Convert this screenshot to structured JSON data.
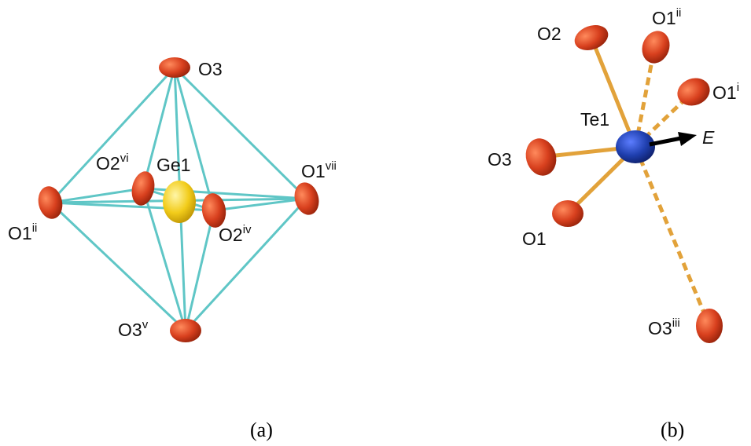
{
  "colors": {
    "bond_octahedron": "#5fc6c6",
    "bond_te": "#e2a23a",
    "oxygen": "#d8401e",
    "germanium": "#f2cc1a",
    "tellurium": "#1f3fae",
    "field_arrow": "#000000"
  },
  "panel_a": {
    "caption": "(a)",
    "center_label": "Ge1",
    "labels": {
      "o3_top": {
        "base": "O3",
        "sup": ""
      },
      "o2_vi": {
        "base": "O2",
        "sup": "vi"
      },
      "o1_vii": {
        "base": "O1",
        "sup": "vii"
      },
      "o1_ii": {
        "base": "O1",
        "sup": "ii"
      },
      "o2_iv": {
        "base": "O2",
        "sup": "iv"
      },
      "o3_v": {
        "base": "O3",
        "sup": "v"
      }
    }
  },
  "panel_b": {
    "caption": "(b)",
    "center_label": "Te1",
    "field_label": "E",
    "labels": {
      "o2": {
        "base": "O2",
        "sup": ""
      },
      "o1_ii": {
        "base": "O1",
        "sup": "ii"
      },
      "o1_i": {
        "base": "O1",
        "sup": "i"
      },
      "o3": {
        "base": "O3",
        "sup": ""
      },
      "o1": {
        "base": "O1",
        "sup": ""
      },
      "o3_iii": {
        "base": "O3",
        "sup": "iii"
      }
    }
  }
}
